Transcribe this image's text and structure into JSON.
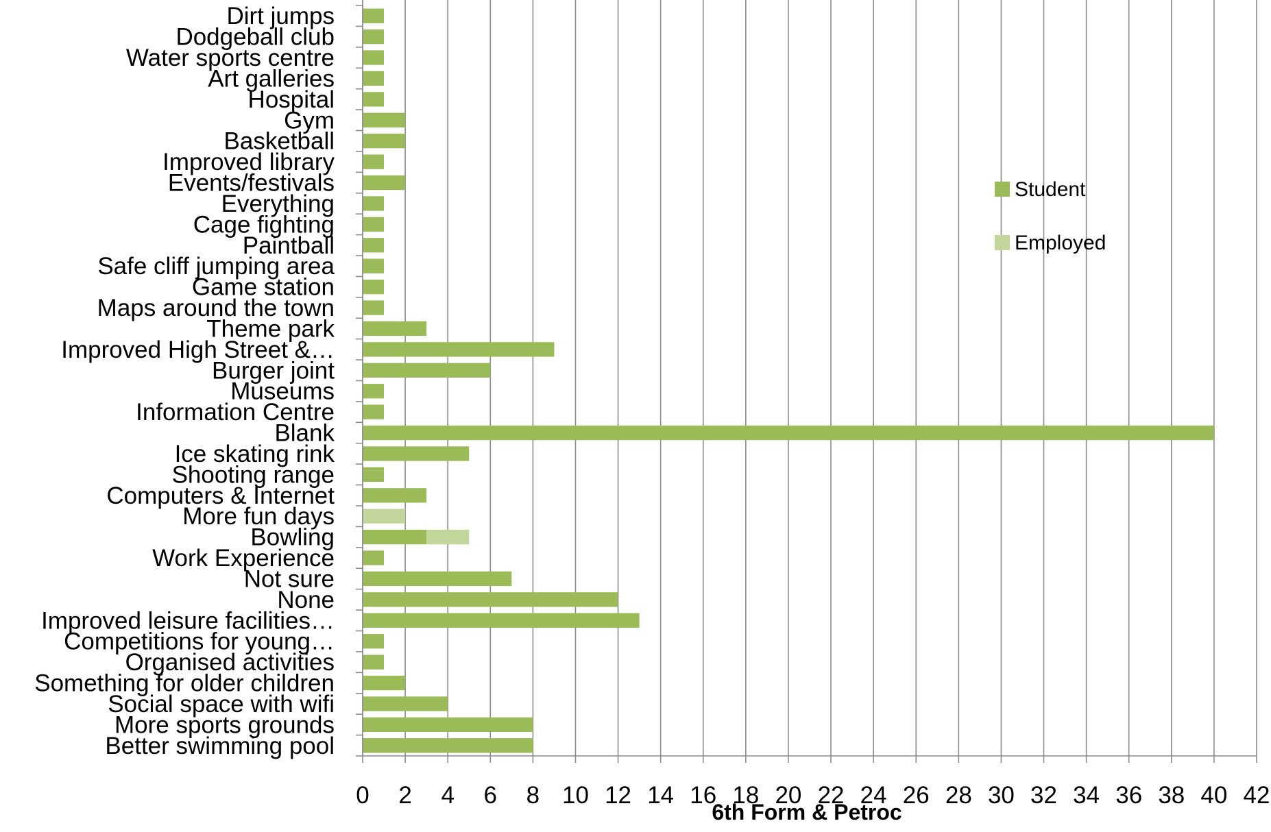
{
  "colors": {
    "student": "#9bbb59",
    "employed": "#c3d69b",
    "grid": "#8c8c8c"
  },
  "chart_data": {
    "type": "bar",
    "orientation": "horizontal",
    "stacked": true,
    "xlabel": "6th Form & Petroc",
    "xlim": [
      0,
      42
    ],
    "xticks": [
      0,
      2,
      4,
      6,
      8,
      10,
      12,
      14,
      16,
      18,
      20,
      22,
      24,
      26,
      28,
      30,
      32,
      34,
      36,
      38,
      40,
      42
    ],
    "grid": "vertical",
    "legend_position": "right",
    "categories": [
      "Dirt jumps",
      "Dodgeball club",
      "Water sports centre",
      "Art galleries",
      "Hospital",
      "Gym",
      "Basketball",
      "Improved library",
      "Events/festivals",
      "Everything",
      "Cage fighting",
      "Paintball",
      "Safe cliff jumping area",
      "Game station",
      "Maps around the town",
      "Theme park",
      "Improved High Street &…",
      "Burger joint",
      "Museums",
      "Information Centre",
      "Blank",
      "Ice skating rink",
      "Shooting range",
      "Computers & Internet",
      "More fun days",
      "Bowling",
      "Work Experience",
      "Not sure",
      "None",
      "Improved leisure facilities…",
      "Competitions for young…",
      "Organised activities",
      "Something for older children",
      "Social space with wifi",
      "More sports grounds",
      "Better swimming pool"
    ],
    "series": [
      {
        "name": "Student",
        "values": [
          1,
          1,
          1,
          1,
          1,
          2,
          2,
          1,
          2,
          1,
          1,
          1,
          1,
          1,
          1,
          3,
          9,
          6,
          1,
          1,
          40,
          5,
          1,
          3,
          0,
          3,
          1,
          7,
          12,
          13,
          1,
          1,
          2,
          4,
          8,
          8
        ]
      },
      {
        "name": "Employed",
        "values": [
          0,
          0,
          0,
          0,
          0,
          0,
          0,
          0,
          0,
          0,
          0,
          0,
          0,
          0,
          0,
          0,
          0,
          0,
          0,
          0,
          0,
          0,
          0,
          0,
          2,
          2,
          0,
          0,
          0,
          0,
          0,
          0,
          0,
          0,
          0,
          0
        ]
      }
    ]
  }
}
